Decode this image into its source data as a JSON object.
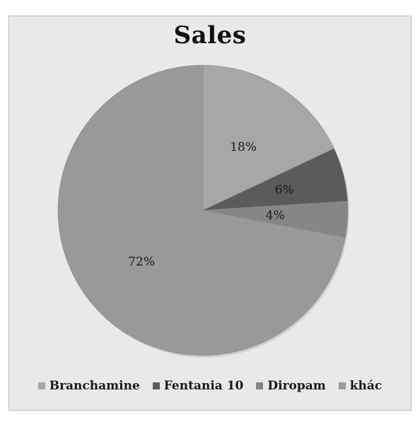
{
  "chart_data": {
    "type": "pie",
    "title": "Sales",
    "slices": [
      {
        "name": "Branchamine",
        "value": 18,
        "label": "18%",
        "color": "#a7a7a7"
      },
      {
        "name": "Fentania 10",
        "value": 6,
        "label": "6%",
        "color": "#5b5b5b"
      },
      {
        "name": "Diropam",
        "value": 4,
        "label": "4%",
        "color": "#868686"
      },
      {
        "name": "khác",
        "value": 72,
        "label": "72%",
        "color": "#999999"
      }
    ],
    "start_angle_deg": 0,
    "direction": "clockwise",
    "legend_position": "bottom"
  }
}
